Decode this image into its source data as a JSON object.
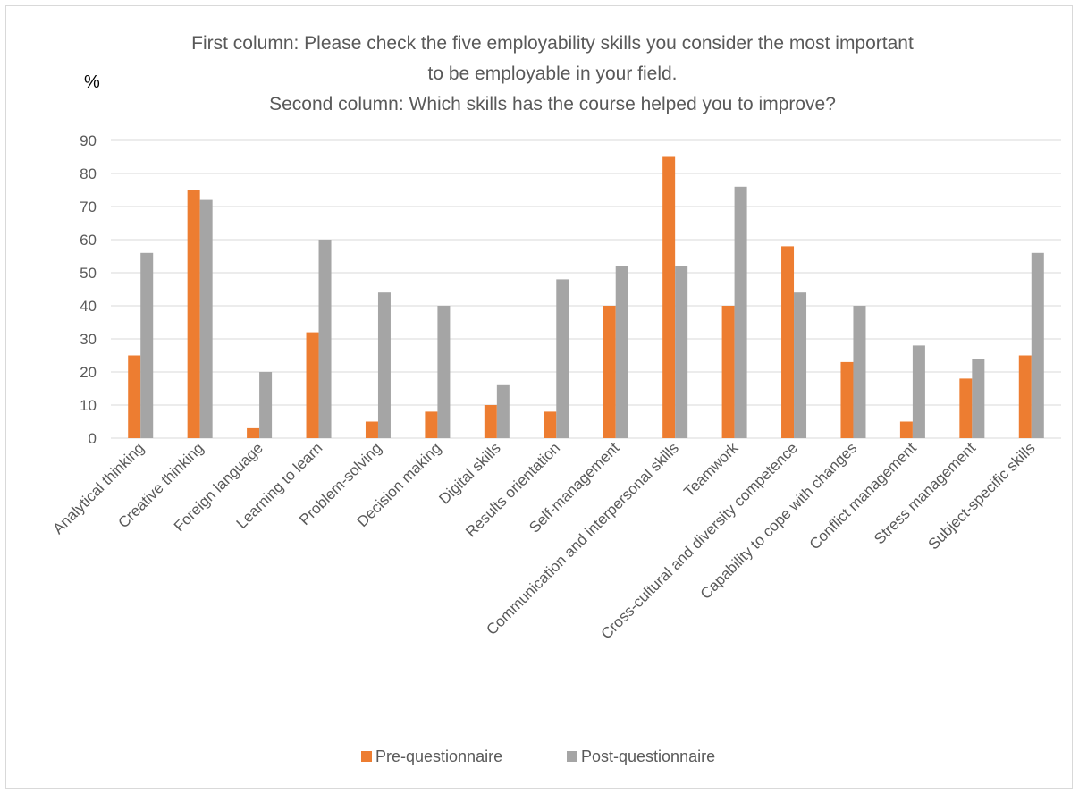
{
  "chart_data": {
    "type": "bar",
    "title_lines": [
      "First column: Please check the five employability skills you consider the most important",
      "to be employable in your field.",
      "Second column: Which skills has the course helped you to improve?"
    ],
    "ylabel": "%",
    "xlabel": "",
    "ylim": [
      0,
      90
    ],
    "yticks": [
      "0",
      "10",
      "20",
      "30",
      "40",
      "50",
      "60",
      "70",
      "80",
      "90"
    ],
    "grid": true,
    "legend_position": "bottom",
    "categories": [
      "Analytical thinking",
      "Creative thinking",
      "Foreign language",
      "Learning to learn",
      "Problem-solving",
      "Decision making",
      "Digital skills",
      "Results orientation",
      "Self-management",
      "Communication and interpersonal skills",
      "Teamwork",
      "Cross-cultural and diversity competence",
      "Capability to cope with changes",
      "Conflict management",
      "Stress management",
      "Subject-specific skills"
    ],
    "series": [
      {
        "name": "Pre-questionnaire",
        "color": "#ED7D31",
        "values": [
          25,
          75,
          3,
          32,
          5,
          8,
          10,
          8,
          40,
          85,
          40,
          58,
          23,
          5,
          18,
          25
        ]
      },
      {
        "name": "Post-questionnaire",
        "color": "#A5A5A5",
        "values": [
          56,
          72,
          20,
          60,
          44,
          40,
          16,
          48,
          52,
          52,
          76,
          44,
          40,
          28,
          24,
          56
        ]
      }
    ]
  }
}
